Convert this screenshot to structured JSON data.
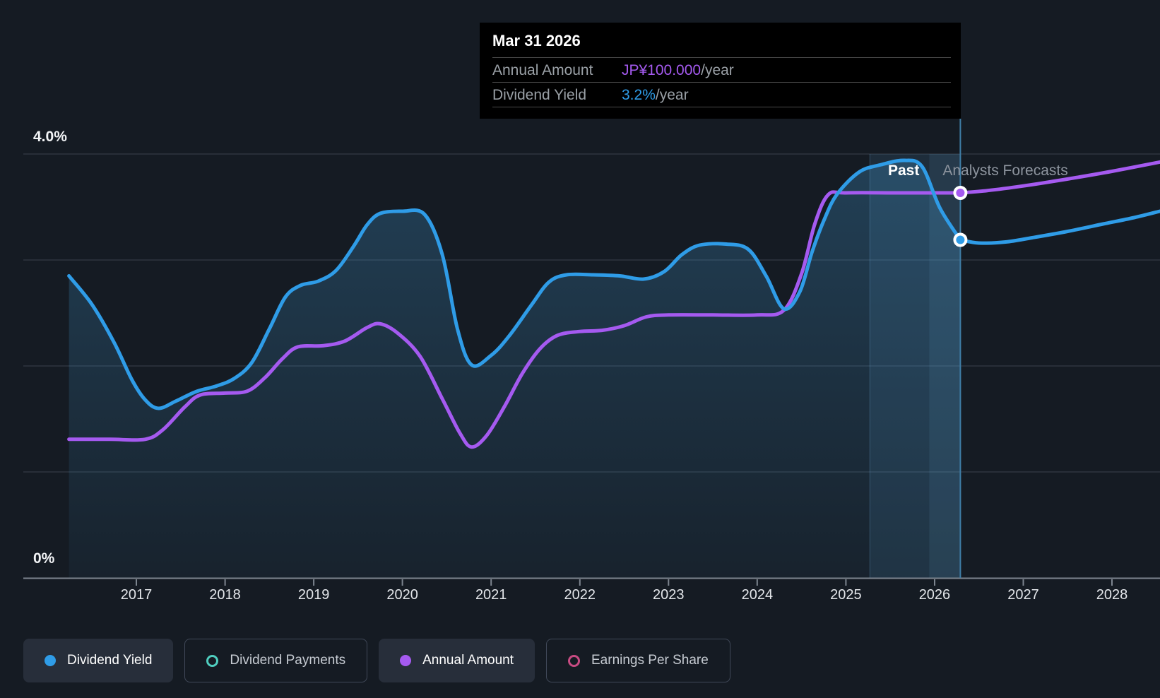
{
  "tooltip": {
    "date": "Mar 31 2026",
    "rows": [
      {
        "label": "Annual Amount",
        "value": "JP¥100.000",
        "suffix": "/year",
        "color": "#a55af0"
      },
      {
        "label": "Dividend Yield",
        "value": "3.2%",
        "suffix": "/year",
        "color": "#2f9ce7"
      }
    ]
  },
  "labels": {
    "past": "Past",
    "forecast": "Analysts Forecasts",
    "y_top": "4.0%",
    "y_bottom": "0%"
  },
  "x_axis": {
    "years": [
      2017,
      2018,
      2019,
      2020,
      2021,
      2022,
      2023,
      2024,
      2025,
      2026,
      2027,
      2028
    ]
  },
  "legend": [
    {
      "label": "Dividend Yield",
      "color": "#2f9ce7",
      "style": "filled"
    },
    {
      "label": "Dividend Payments",
      "color": "#4fcebf",
      "style": "outlined"
    },
    {
      "label": "Annual Amount",
      "color": "#a55af0",
      "style": "filled"
    },
    {
      "label": "Earnings Per Share",
      "color": "#c74b82",
      "style": "outlined"
    }
  ],
  "chart_data": {
    "type": "line",
    "x_domain": [
      2016.24,
      2028.54
    ],
    "x_ticks": [
      2017,
      2018,
      2019,
      2020,
      2021,
      2022,
      2023,
      2024,
      2025,
      2026,
      2027,
      2028
    ],
    "y_axis": {
      "unit": "%",
      "min": 0,
      "max": 4,
      "gridlines_pct": [
        1,
        2,
        3,
        4
      ],
      "labeled_ticks": [
        "4.0%",
        "0%"
      ],
      "grid": true
    },
    "divider": {
      "year": 2026.29,
      "date": "Mar 31 2026",
      "label_left": "Past",
      "label_right": "Analysts Forecasts"
    },
    "highlight_band": {
      "from_year": 2025.27,
      "to_year": 2026.29,
      "bright_from_year": 2025.94
    },
    "legend_position": "bottom",
    "series": [
      {
        "name": "Annual Amount",
        "unit": "JPY",
        "color": "#a55af0",
        "area_fill": false,
        "marker": {
          "year": 2026.29,
          "value": 100
        },
        "past": [
          [
            2016.24,
            36
          ],
          [
            2016.7,
            36
          ],
          [
            2017.1,
            36
          ],
          [
            2017.3,
            38.5
          ],
          [
            2017.55,
            44.5
          ],
          [
            2017.72,
            47.5
          ],
          [
            2018.0,
            48
          ],
          [
            2018.25,
            48.5
          ],
          [
            2018.45,
            52
          ],
          [
            2018.65,
            57
          ],
          [
            2018.82,
            60
          ],
          [
            2019.1,
            60.3
          ],
          [
            2019.35,
            61.5
          ],
          [
            2019.6,
            65
          ],
          [
            2019.75,
            66
          ],
          [
            2019.95,
            63.5
          ],
          [
            2020.2,
            57.5
          ],
          [
            2020.45,
            46.5
          ],
          [
            2020.65,
            37.5
          ],
          [
            2020.78,
            34
          ],
          [
            2020.95,
            37
          ],
          [
            2021.15,
            44.5
          ],
          [
            2021.35,
            53
          ],
          [
            2021.55,
            59.5
          ],
          [
            2021.75,
            63
          ],
          [
            2022.0,
            64
          ],
          [
            2022.25,
            64.3
          ],
          [
            2022.5,
            65.5
          ],
          [
            2022.75,
            67.8
          ],
          [
            2023.0,
            68.3
          ],
          [
            2023.5,
            68.3
          ],
          [
            2024.0,
            68.3
          ],
          [
            2024.3,
            69.5
          ],
          [
            2024.5,
            79
          ],
          [
            2024.65,
            92
          ],
          [
            2024.8,
            99.5
          ],
          [
            2025.0,
            100
          ],
          [
            2025.6,
            100
          ],
          [
            2026.29,
            100
          ]
        ],
        "forecast": [
          [
            2026.29,
            100
          ],
          [
            2026.6,
            100.6
          ],
          [
            2027.0,
            101.8
          ],
          [
            2027.5,
            103.6
          ],
          [
            2028.0,
            105.6
          ],
          [
            2028.54,
            108
          ]
        ]
      },
      {
        "name": "Dividend Yield",
        "unit": "%",
        "color": "#2f9ce7",
        "area_fill": true,
        "marker": {
          "year": 2026.29,
          "value": 3.19
        },
        "past": [
          [
            2016.24,
            2.85
          ],
          [
            2016.5,
            2.58
          ],
          [
            2016.75,
            2.22
          ],
          [
            2016.95,
            1.87
          ],
          [
            2017.1,
            1.68
          ],
          [
            2017.25,
            1.6
          ],
          [
            2017.45,
            1.67
          ],
          [
            2017.68,
            1.76
          ],
          [
            2017.9,
            1.81
          ],
          [
            2018.1,
            1.88
          ],
          [
            2018.3,
            2.03
          ],
          [
            2018.5,
            2.35
          ],
          [
            2018.68,
            2.65
          ],
          [
            2018.85,
            2.76
          ],
          [
            2019.05,
            2.8
          ],
          [
            2019.25,
            2.9
          ],
          [
            2019.45,
            3.13
          ],
          [
            2019.6,
            3.33
          ],
          [
            2019.75,
            3.44
          ],
          [
            2020.0,
            3.46
          ],
          [
            2020.25,
            3.43
          ],
          [
            2020.45,
            3.05
          ],
          [
            2020.62,
            2.35
          ],
          [
            2020.78,
            2.01
          ],
          [
            2021.0,
            2.1
          ],
          [
            2021.2,
            2.28
          ],
          [
            2021.45,
            2.57
          ],
          [
            2021.65,
            2.79
          ],
          [
            2021.85,
            2.86
          ],
          [
            2022.15,
            2.86
          ],
          [
            2022.45,
            2.85
          ],
          [
            2022.72,
            2.82
          ],
          [
            2022.95,
            2.89
          ],
          [
            2023.15,
            3.05
          ],
          [
            2023.35,
            3.14
          ],
          [
            2023.65,
            3.15
          ],
          [
            2023.9,
            3.1
          ],
          [
            2024.1,
            2.85
          ],
          [
            2024.3,
            2.54
          ],
          [
            2024.48,
            2.7
          ],
          [
            2024.62,
            3.08
          ],
          [
            2024.76,
            3.39
          ],
          [
            2024.9,
            3.62
          ],
          [
            2025.15,
            3.83
          ],
          [
            2025.4,
            3.9
          ],
          [
            2025.66,
            3.94
          ],
          [
            2025.86,
            3.88
          ],
          [
            2026.06,
            3.49
          ],
          [
            2026.29,
            3.19
          ]
        ],
        "forecast": [
          [
            2026.29,
            3.19
          ],
          [
            2026.5,
            3.16
          ],
          [
            2026.8,
            3.17
          ],
          [
            2027.1,
            3.21
          ],
          [
            2027.5,
            3.27
          ],
          [
            2027.9,
            3.34
          ],
          [
            2028.25,
            3.4
          ],
          [
            2028.54,
            3.46
          ]
        ]
      }
    ]
  }
}
